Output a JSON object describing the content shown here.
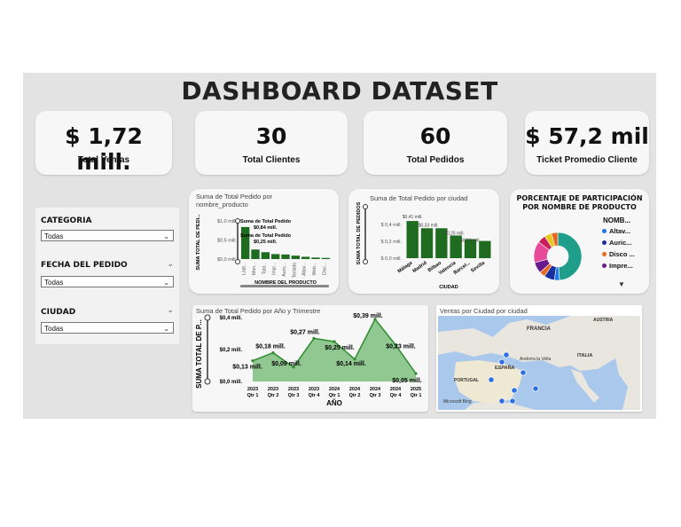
{
  "title": "DASHBOARD DATASET",
  "kpis": [
    {
      "value": "$ 1,72 mill.",
      "label": "Total Ventas"
    },
    {
      "value": "30",
      "label": "Total Clientes"
    },
    {
      "value": "60",
      "label": "Total Pedidos"
    },
    {
      "value": "$ 57,2 mil",
      "label": "Ticket Promedio Cliente"
    }
  ],
  "filters": {
    "categoria": {
      "label": "CATEGORIA",
      "value": "Todas"
    },
    "fecha": {
      "label": "FECHA DEL PEDIDO",
      "value": "Todas"
    },
    "ciudad": {
      "label": "CIUDAD",
      "value": "Todas"
    }
  },
  "product_chart": {
    "title": "Suma de Total Pedido por nombre_producto",
    "ylabel": "SUMA TOTAL DE PEDI...",
    "xlabel": "NOMBRE DEL PRODUCTO",
    "yticks": [
      "$1,0 mill.",
      "$0,5 mill.",
      "$0,0 mill."
    ],
    "annotations": [
      "Suma de Total Pedido",
      "$0,84 mill.",
      "Suma de Total Pedido",
      "$0,25 mill."
    ]
  },
  "city_chart": {
    "title": "Suma de Total Pedido por ciudad",
    "ylabel": "SUMA TOTAL DE PEDIDOS",
    "xlabel": "CIUDAD",
    "yticks": [
      "$ 0,4 mill.",
      "$ 0,2 mill.",
      "$ 0,0 mill."
    ],
    "value_labels": [
      "$0,41 mill.",
      "$0,33 mill.",
      "$0,25 mill.",
      "$0,19 mill."
    ]
  },
  "pie_chart": {
    "title": "PORCENTAJE DE PARTICIPACIÓN POR NOMBRE DE PRODUCTO",
    "legend_title": "NOMB...",
    "legend": [
      {
        "label": "Altav...",
        "color": "#1f77e8"
      },
      {
        "label": "Auric...",
        "color": "#1a2f9e"
      },
      {
        "label": "Disco ...",
        "color": "#e86a1f"
      },
      {
        "label": "Impre...",
        "color": "#6a1a8c"
      }
    ]
  },
  "trend_chart": {
    "title": "Suma de Total Pedido por Año y Trimestre",
    "ylabel": "SUMA TOTAL DE P...",
    "xlabel": "AÑO",
    "yticks": [
      "$0,4 mill.",
      "$0,2 mill.",
      "$0,0 mill."
    ],
    "xticks": [
      [
        "2023",
        "Qtr 1"
      ],
      [
        "2023",
        "Qtr 2"
      ],
      [
        "2023",
        "Qtr 3"
      ],
      [
        "2023",
        "Qtr 4"
      ],
      [
        "2024",
        "Qtr 1"
      ],
      [
        "2024",
        "Qtr 2"
      ],
      [
        "2024",
        "Qtr 3"
      ],
      [
        "2024",
        "Qtr 4"
      ],
      [
        "2025",
        "Qtr 1"
      ]
    ],
    "point_labels": [
      "$0,13 mill.",
      "$0,18 mill.",
      "$0,09 mill.",
      "$0,27 mill.",
      "$0,25 mill.",
      "$0,14 mill.",
      "$0,39 mill.",
      "$0,23 mill.",
      "$0,05 mill."
    ]
  },
  "map": {
    "title": "Ventas por Ciudad por ciudad",
    "labels": [
      "FRANCIA",
      "AUSTRIA",
      "ITALIA",
      "ESPAÑA",
      "PORTUGAL",
      "Andorra la Vella",
      "Microsoft Bing"
    ]
  },
  "chart_data": [
    {
      "type": "bar",
      "title": "Suma de Total Pedido por nombre_producto",
      "xlabel": "NOMBRE DEL PRODUCTO",
      "ylabel": "SUMA TOTAL DE PEDI...",
      "categories": [
        "Lapt...",
        "Mon...",
        "Tabl...",
        "Impr...",
        "Auric...",
        "Teclado",
        "Altav...",
        "Web...",
        "Disc..."
      ],
      "values": [
        0.84,
        0.25,
        0.18,
        0.13,
        0.12,
        0.09,
        0.06,
        0.04,
        0.03
      ],
      "ylim": [
        0,
        1.0
      ],
      "color": "#1f6b1f"
    },
    {
      "type": "bar",
      "title": "Suma de Total Pedido por ciudad",
      "xlabel": "CIUDAD",
      "ylabel": "SUMA TOTAL DE PEDIDOS",
      "categories": [
        "Málaga",
        "Madrid",
        "Bilbao",
        "Valencia",
        "Barcel...",
        "Sevilla"
      ],
      "values": [
        0.41,
        0.33,
        0.33,
        0.25,
        0.21,
        0.19
      ],
      "ylim": [
        0,
        0.45
      ],
      "color": "#1f6b1f"
    },
    {
      "type": "pie",
      "title": "PORCENTAJE DE PARTICIPACIÓN POR NOMBRE DE PRODUCTO",
      "categories": [
        "Laptop",
        "Altavoz",
        "Auriculares",
        "Disco",
        "Impresora",
        "Monitor",
        "Tablet",
        "Teclado",
        "Webcam"
      ],
      "values": [
        48.8,
        3.5,
        7.0,
        4.0,
        7.5,
        14.5,
        5.5,
        5.0,
        4.2
      ],
      "colors": [
        "#1f9e8c",
        "#1f77e8",
        "#1a2f9e",
        "#e86a1f",
        "#6a1a8c",
        "#e84a9a",
        "#c81f5c",
        "#e8c81f",
        "#e8641f"
      ]
    },
    {
      "type": "area",
      "title": "Suma de Total Pedido por Año y Trimestre",
      "xlabel": "AÑO",
      "ylabel": "SUMA TOTAL DE P...",
      "categories": [
        "2023 Qtr 1",
        "2023 Qtr 2",
        "2023 Qtr 3",
        "2023 Qtr 4",
        "2024 Qtr 1",
        "2024 Qtr 2",
        "2024 Qtr 3",
        "2024 Qtr 4",
        "2025 Qtr 1"
      ],
      "values": [
        0.13,
        0.18,
        0.09,
        0.27,
        0.25,
        0.14,
        0.39,
        0.23,
        0.05
      ],
      "ylim": [
        0,
        0.4
      ],
      "color": "#2e8b2e"
    }
  ]
}
